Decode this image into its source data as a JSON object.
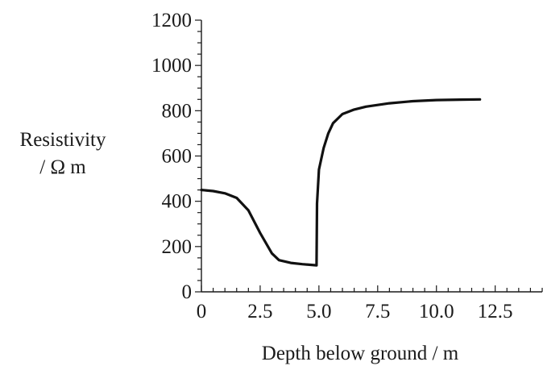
{
  "chart_data": {
    "type": "line",
    "title": "",
    "xlabel": "Depth below ground / m",
    "ylabel_line1": "Resistivity",
    "ylabel_line2": "/ Ω m",
    "xlim": [
      0,
      14.5
    ],
    "ylim": [
      0,
      1200
    ],
    "x_ticks": [
      0,
      2.5,
      5.0,
      7.5,
      10.0,
      12.5
    ],
    "x_tick_labels": [
      "0",
      "2.5",
      "5.0",
      "7.5",
      "10.0",
      "12.5"
    ],
    "x_minor_step": 0.5,
    "y_ticks": [
      0,
      200,
      400,
      600,
      800,
      1000,
      1200
    ],
    "y_tick_labels": [
      "0",
      "200",
      "400",
      "600",
      "800",
      "1000",
      "1200"
    ],
    "y_minor_step": 50,
    "grid": false,
    "series": [
      {
        "color": "#111111",
        "x": [
          0,
          0.5,
          1.0,
          1.5,
          2.0,
          2.5,
          3.0,
          3.3,
          3.8,
          4.3,
          4.9,
          4.92,
          5.0,
          5.2,
          5.4,
          5.6,
          6.0,
          6.5,
          7.0,
          8.0,
          9.0,
          10.0,
          11.0,
          11.85
        ],
        "y": [
          450,
          445,
          435,
          415,
          360,
          260,
          170,
          140,
          128,
          122,
          117,
          390,
          540,
          635,
          700,
          745,
          785,
          805,
          818,
          833,
          842,
          847,
          849,
          850
        ]
      }
    ]
  }
}
